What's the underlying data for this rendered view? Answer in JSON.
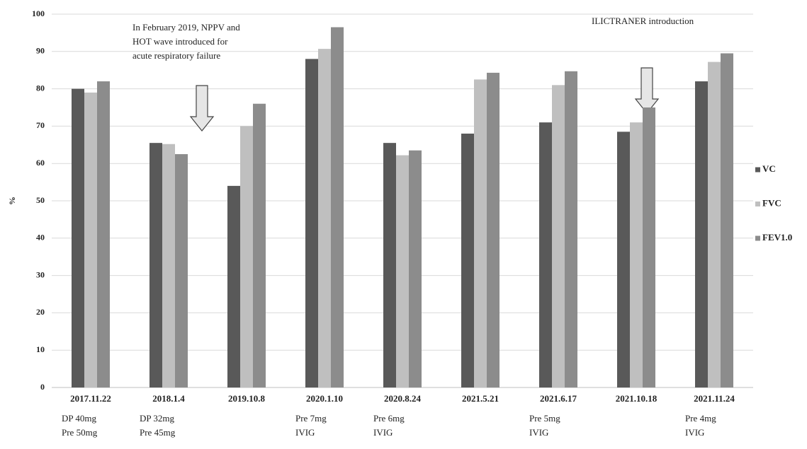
{
  "chart_data": {
    "type": "bar",
    "y_label": "%",
    "categories": [
      "2017.11.22",
      "2018.1.4",
      "2019.10.8",
      "2020.1.10",
      "2020.8.24",
      "2021.5.21",
      "2021.6.17",
      "2021.10.18",
      "2021.11.24"
    ],
    "category_notes": [
      [
        "DP 40mg",
        "Pre 50mg"
      ],
      [
        "DP 32mg",
        "Pre 45mg"
      ],
      null,
      [
        "Pre 7mg",
        "IVIG"
      ],
      [
        "Pre 6mg",
        "IVIG"
      ],
      null,
      [
        "Pre 5mg",
        "IVIG"
      ],
      null,
      [
        "Pre 4mg",
        "IVIG"
      ]
    ],
    "series": [
      {
        "name": "VC",
        "color": "#595959",
        "values": [
          80,
          65.5,
          54,
          88,
          65.5,
          68,
          71,
          68.5,
          82
        ]
      },
      {
        "name": "FVC",
        "color": "#bfbfbf",
        "values": [
          79,
          65.2,
          70,
          90.7,
          62.2,
          82.5,
          81,
          71,
          87.2
        ]
      },
      {
        "name": "FEV1.0",
        "color": "#8c8c8c",
        "values": [
          82,
          62.5,
          76,
          96.5,
          63.5,
          84.3,
          84.7,
          75,
          89.5
        ]
      }
    ],
    "ylim": [
      0,
      100
    ],
    "yticks": [
      0,
      10,
      20,
      30,
      40,
      50,
      60,
      70,
      80,
      90,
      100
    ],
    "grid": true,
    "legend": "right",
    "annotations": [
      [
        "In February 2019, NPPV and",
        "HOT wave introduced for",
        "acute respiratory failure"
      ],
      [
        "ILICTRANER introduction"
      ]
    ]
  }
}
